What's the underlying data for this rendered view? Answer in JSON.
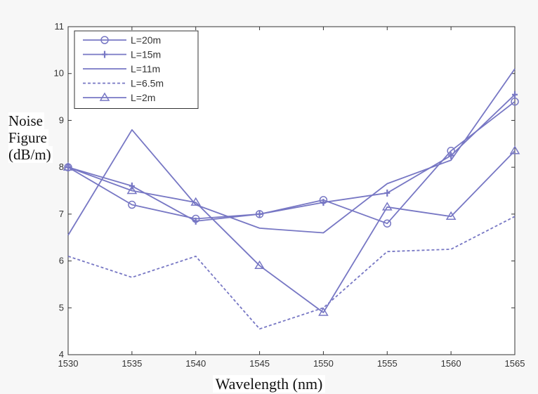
{
  "chart_data": {
    "type": "line",
    "title": "",
    "xlabel": "Wavelength (nm)",
    "ylabel_lines": [
      "Noise",
      "Figure",
      "(dB/m)"
    ],
    "x": [
      1530,
      1535,
      1540,
      1545,
      1550,
      1555,
      1560,
      1565
    ],
    "xticks": [
      "1530",
      "1535",
      "1540",
      "1545",
      "1550",
      "1555",
      "1560",
      "1565"
    ],
    "yticks": [
      "4",
      "5",
      "6",
      "7",
      "8",
      "9",
      "10",
      "11"
    ],
    "xlim": [
      1530,
      1565
    ],
    "ylim": [
      4,
      11
    ],
    "grid": false,
    "legend_position": "top-left",
    "line_color": "#7777c4",
    "series": [
      {
        "name": "L=20m",
        "marker": "circle",
        "dash": "solid",
        "values": [
          8.0,
          7.2,
          6.9,
          7.0,
          7.3,
          6.8,
          8.35,
          9.4
        ]
      },
      {
        "name": "L=15m",
        "marker": "plus",
        "dash": "solid",
        "values": [
          8.0,
          7.6,
          6.85,
          7.0,
          7.25,
          7.45,
          8.25,
          9.55
        ]
      },
      {
        "name": "L=11m",
        "marker": "none",
        "dash": "solid",
        "values": [
          6.55,
          8.8,
          7.2,
          6.7,
          6.6,
          7.65,
          8.15,
          10.1
        ]
      },
      {
        "name": "L=6.5m",
        "marker": "none",
        "dash": "dotted",
        "values": [
          6.1,
          5.65,
          6.1,
          4.55,
          5.0,
          6.2,
          6.25,
          6.95
        ]
      },
      {
        "name": "L=2m",
        "marker": "triangle",
        "dash": "solid",
        "values": [
          8.0,
          7.5,
          7.25,
          5.9,
          4.9,
          7.15,
          6.95,
          8.35
        ]
      }
    ]
  }
}
